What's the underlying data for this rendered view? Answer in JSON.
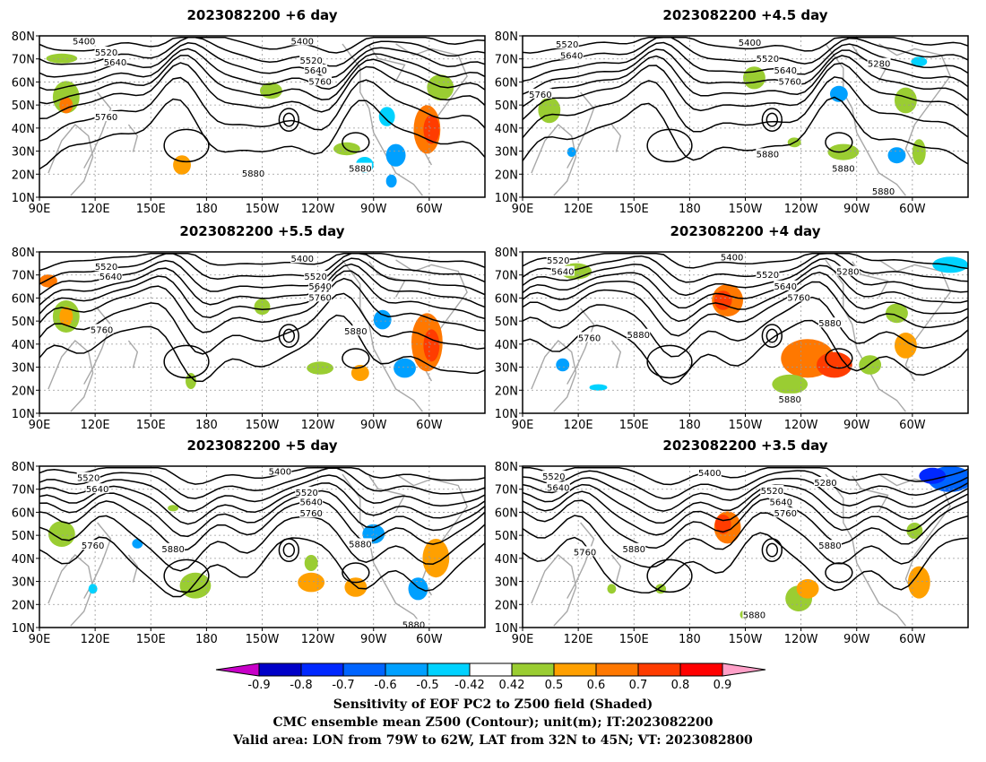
{
  "panels": [
    {
      "title": "2023082200 +6 day"
    },
    {
      "title": "2023082200 +4.5 day"
    },
    {
      "title": "2023082200 +5.5 day"
    },
    {
      "title": "2023082200 +4 day"
    },
    {
      "title": "2023082200 +5 day"
    },
    {
      "title": "2023082200 +3.5 day"
    }
  ],
  "axes": {
    "lon_labels": [
      "90E",
      "120E",
      "150E",
      "180",
      "150W",
      "120W",
      "90W",
      "60W"
    ],
    "lat_labels": [
      "80N",
      "70N",
      "60N",
      "50N",
      "40N",
      "30N",
      "20N",
      "10N"
    ]
  },
  "contour_labels": [
    "5400",
    "5520",
    "5640",
    "5760",
    "5880",
    "5280"
  ],
  "colorbar": {
    "ticks": [
      "-0.9",
      "-0.8",
      "-0.7",
      "-0.6",
      "-0.5",
      "-0.42",
      "0.42",
      "0.5",
      "0.6",
      "0.7",
      "0.8",
      "0.9"
    ],
    "colors": [
      "#0000c8",
      "#0028ff",
      "#0064ff",
      "#00a0ff",
      "#00d2ff",
      "#ffffff",
      "#9acd32",
      "#ffa000",
      "#ff7800",
      "#ff3c00",
      "#ff0000"
    ],
    "left_arrow_color": "#c800c8",
    "right_arrow_color": "#ffa0c8"
  },
  "caption": {
    "line1": "Sensitivity of EOF PC2 to Z500 field (Shaded)",
    "line2": "CMC ensemble mean Z500 (Contour); unit(m); IT:2023082200",
    "line3": "Valid area: LON from 79W to 62W, LAT from 32N to 45N; VT: 2023082800"
  }
}
